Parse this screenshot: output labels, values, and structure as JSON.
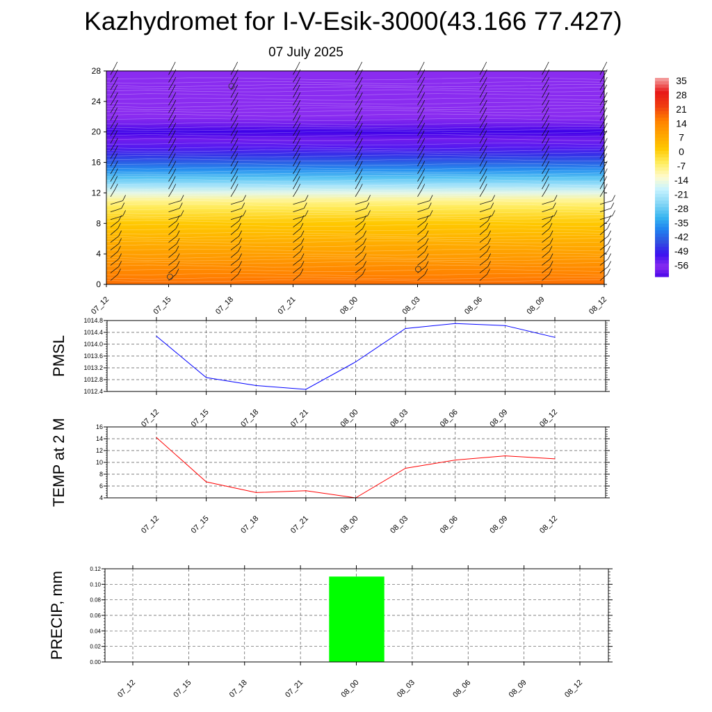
{
  "header": {
    "title": "Kazhydromet for I-V-Esik-3000(43.166 77.427)",
    "date": "07 July 2025"
  },
  "chart_data": [
    {
      "id": "cross_section",
      "type": "heatmap",
      "title": "",
      "ylabel": "",
      "ylim": [
        0,
        28
      ],
      "yticks": [
        0,
        4,
        8,
        12,
        16,
        20,
        24,
        28
      ],
      "x_categories": [
        "07_12",
        "07_15",
        "07_18",
        "07_21",
        "08_00",
        "08_03",
        "08_06",
        "08_09",
        "08_12"
      ],
      "height_levels": [
        0,
        1,
        2,
        3,
        4,
        5,
        6,
        7,
        8,
        9,
        10,
        11,
        12,
        13,
        14,
        15,
        16,
        17,
        18,
        19,
        20,
        21,
        22,
        23,
        24,
        25,
        26,
        27,
        28
      ],
      "temperature_profile": [
        16,
        14,
        12,
        10,
        8,
        6,
        4,
        2,
        0,
        -3,
        -6,
        -10,
        -17,
        -24,
        -31,
        -38,
        -44,
        -49,
        -54,
        -60,
        -64,
        -60,
        -58,
        -58,
        -58,
        -58,
        -58,
        -58,
        -58
      ],
      "colorbar": {
        "labels": [
          "35",
          "28",
          "21",
          "14",
          "7",
          "0",
          "-7",
          "-14",
          "-21",
          "-28",
          "-35",
          "-42",
          "-49",
          "-56"
        ],
        "colors": [
          "#f5a8a8",
          "#e82020",
          "#e81818",
          "#f03c10",
          "#ff7a00",
          "#ffb400",
          "#ffee60",
          "#fffbd0",
          "#c7f3ff",
          "#35b4f0",
          "#2080f0",
          "#3050e0",
          "#3a10f0",
          "#8a2cf0"
        ]
      },
      "wind_barb_columns": 9
    },
    {
      "id": "pmsl",
      "type": "line",
      "ylabel": "PMSL",
      "x": [
        "07_12",
        "07_15",
        "07_18",
        "07_21",
        "08_00",
        "08_03",
        "08_06",
        "08_09",
        "08_12"
      ],
      "y": [
        1014.27,
        1012.87,
        1012.6,
        1012.47,
        1013.4,
        1014.53,
        1014.7,
        1014.63,
        1014.23
      ],
      "ylim": [
        1012.4,
        1014.8
      ],
      "yticks": [
        "1012.4",
        "1012.8",
        "1013.2",
        "1013.6",
        "1014.0",
        "1014.4",
        "1014.8"
      ],
      "color": "#0000ff",
      "grid": true
    },
    {
      "id": "temp2m",
      "type": "line",
      "ylabel": "TEMP at 2 M",
      "x": [
        "07_12",
        "07_15",
        "07_18",
        "07_21",
        "08_00",
        "08_03",
        "08_06",
        "08_09",
        "08_12"
      ],
      "y": [
        14.2,
        6.7,
        4.9,
        5.2,
        4.0,
        9.0,
        10.4,
        11.1,
        10.6
      ],
      "ylim": [
        4,
        16
      ],
      "yticks": [
        "4",
        "6",
        "8",
        "10",
        "12",
        "14",
        "16"
      ],
      "color": "#ff0000",
      "grid": true
    },
    {
      "id": "precip",
      "type": "bar",
      "ylabel": "PRECIP, mm",
      "x": [
        "07_12",
        "07_15",
        "07_18",
        "07_21",
        "08_00",
        "08_03",
        "08_06",
        "08_09",
        "08_12"
      ],
      "values": [
        0,
        0,
        0,
        0,
        0.11,
        0,
        0,
        0,
        0
      ],
      "ylim": [
        0,
        0.12
      ],
      "yticks": [
        "0.00",
        "0.02",
        "0.04",
        "0.06",
        "0.08",
        "0.10",
        "0.12"
      ],
      "color": "#00ff00",
      "grid": true
    }
  ]
}
